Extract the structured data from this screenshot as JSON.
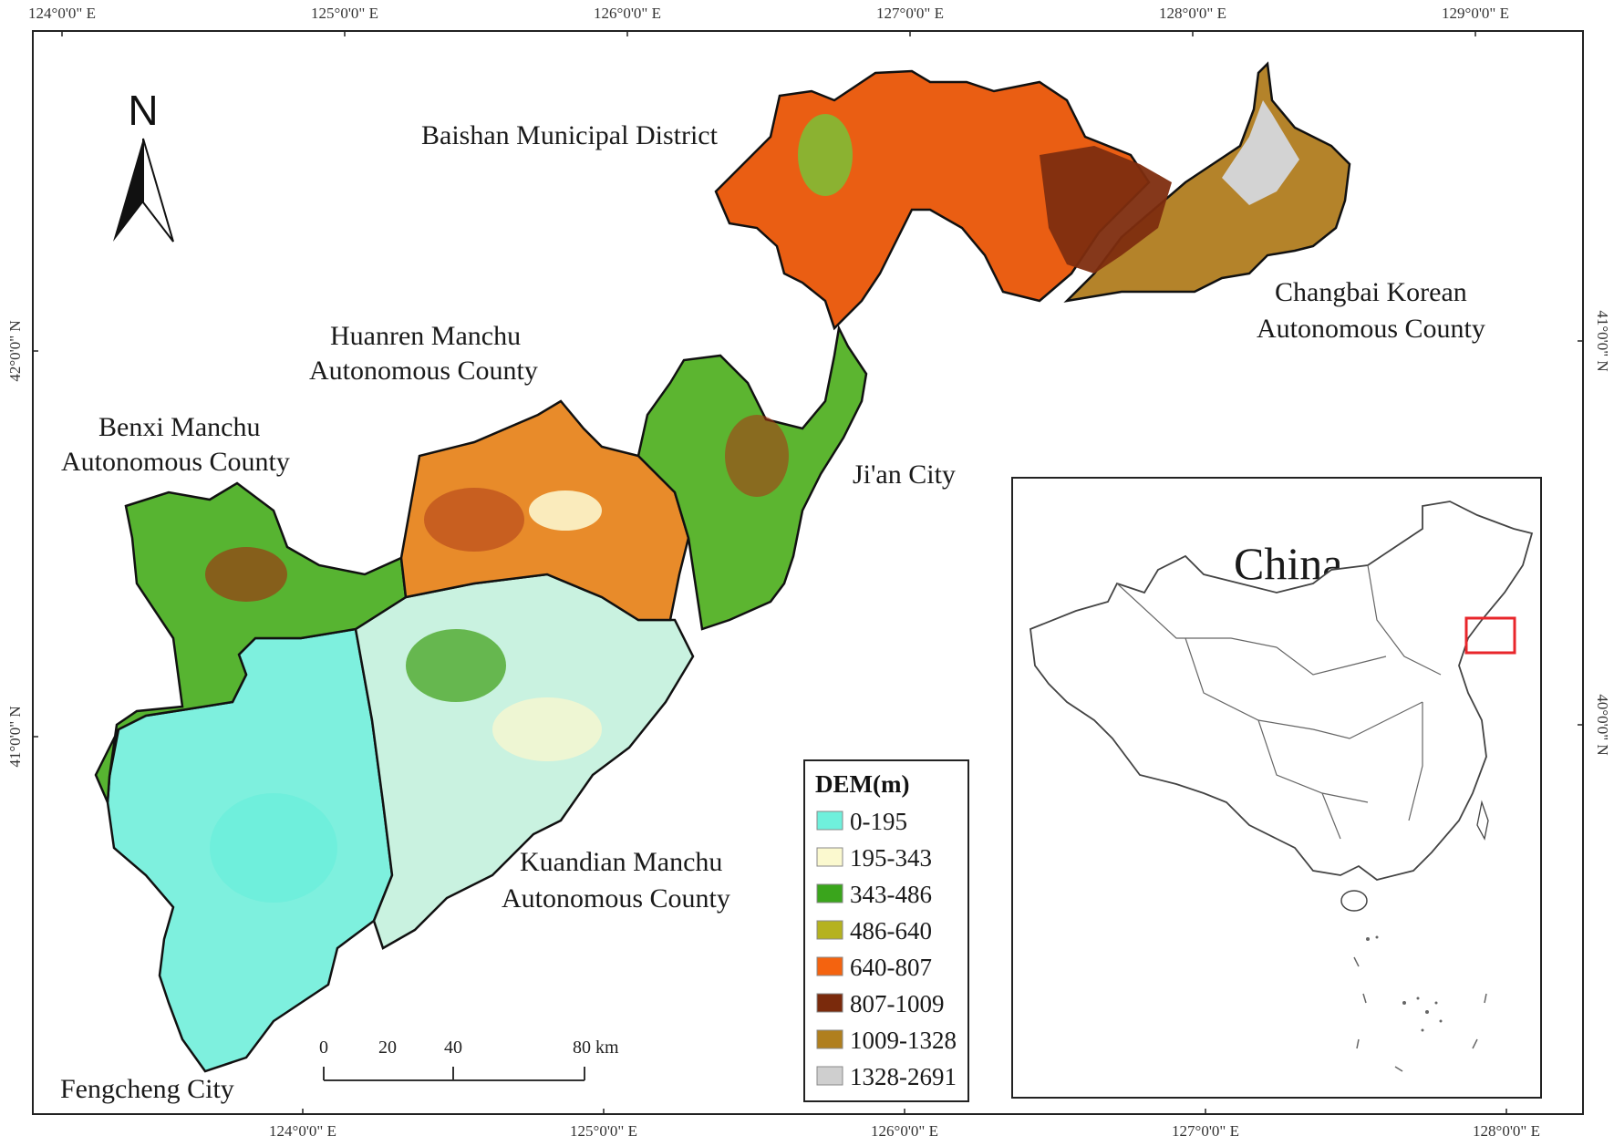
{
  "map": {
    "top_ticks": [
      "124°0'0\" E",
      "125°0'0\" E",
      "126°0'0\" E",
      "127°0'0\" E",
      "128°0'0\" E",
      "129°0'0\" E"
    ],
    "bottom_ticks": [
      "124°0'0\" E",
      "125°0'0\" E",
      "126°0'0\" E",
      "127°0'0\" E",
      "128°0'0\" E"
    ],
    "left_ticks": [
      "42°0'0\" N",
      "41°0'0\" N"
    ],
    "right_ticks": [
      "41°0'0\" N",
      "40°0'0\" N"
    ],
    "north_label": "N",
    "regions": {
      "baishan": "Baishan Municipal District",
      "changbai_1": "Changbai Korean",
      "changbai_2": "Autonomous County",
      "huanren_1": "Huanren Manchu",
      "huanren_2": "Autonomous County",
      "benxi_1": "Benxi Manchu",
      "benxi_2": "Autonomous County",
      "jian": "Ji'an City",
      "kuandian_1": "Kuandian Manchu",
      "kuandian_2": "Autonomous County",
      "fengcheng": "Fengcheng City"
    }
  },
  "scale_bar": {
    "labels": [
      "0",
      "20",
      "40",
      "80 km"
    ]
  },
  "legend": {
    "title": "DEM(m)",
    "items": [
      {
        "label": "0-195",
        "color": "#6ff0dc"
      },
      {
        "label": "195-343",
        "color": "#fbf9cf"
      },
      {
        "label": "343-486",
        "color": "#3aa51c"
      },
      {
        "label": "486-640",
        "color": "#b5b21f"
      },
      {
        "label": "640-807",
        "color": "#f4630f"
      },
      {
        "label": "807-1009",
        "color": "#7a2a0c"
      },
      {
        "label": "1009-1328",
        "color": "#b07f1e"
      },
      {
        "label": "1328-2691",
        "color": "#cfcfcf"
      }
    ]
  },
  "inset": {
    "title": "China",
    "highlight_color": "#e8262b"
  }
}
